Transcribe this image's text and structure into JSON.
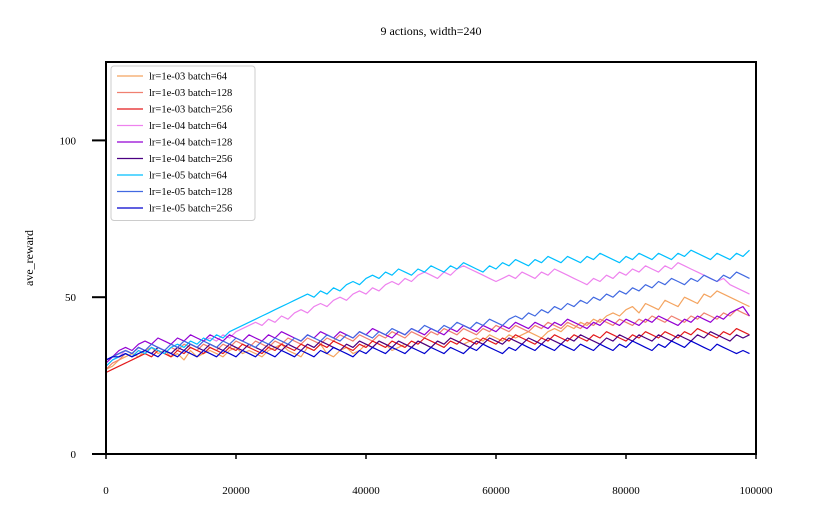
{
  "chart_data": {
    "type": "line",
    "title": "9 actions, width=240",
    "xlabel": "",
    "ylabel": "ave_reward",
    "xlim": [
      0,
      100000
    ],
    "ylim": [
      0,
      125
    ],
    "xticks": [
      0,
      20000,
      40000,
      60000,
      80000,
      100000
    ],
    "yticks": [
      0,
      50,
      100
    ],
    "grid": false,
    "legend_position": "top-left",
    "x_start": 0,
    "x_step": 1000,
    "series": [
      {
        "name": "lr=1e-03 batch=64",
        "color": "#f4a460",
        "values": [
          27,
          28,
          30,
          31,
          32,
          31,
          33,
          34,
          32,
          33,
          31,
          32,
          30,
          33,
          31,
          32,
          33,
          32,
          31,
          33,
          34,
          32,
          33,
          32,
          31,
          33,
          34,
          35,
          33,
          32,
          31,
          34,
          33,
          35,
          32,
          31,
          33,
          34,
          32,
          33,
          35,
          34,
          36,
          35,
          33,
          34,
          35,
          34,
          36,
          35,
          34,
          36,
          35,
          37,
          36,
          35,
          36,
          37,
          36,
          38,
          37,
          36,
          38,
          37,
          38,
          39,
          38,
          37,
          39,
          40,
          39,
          41,
          40,
          42,
          41,
          43,
          42,
          44,
          45,
          44,
          46,
          47,
          45,
          48,
          47,
          46,
          49,
          48,
          47,
          50,
          49,
          48,
          51,
          50,
          52,
          51,
          50,
          49,
          48,
          47
        ]
      },
      {
        "name": "lr=1e-03 batch=128",
        "color": "#f08070",
        "values": [
          27,
          29,
          30,
          32,
          31,
          33,
          32,
          34,
          33,
          32,
          34,
          33,
          35,
          34,
          33,
          35,
          34,
          33,
          35,
          34,
          36,
          35,
          34,
          36,
          35,
          34,
          36,
          35,
          37,
          36,
          35,
          37,
          36,
          35,
          37,
          36,
          38,
          37,
          36,
          38,
          37,
          36,
          38,
          37,
          39,
          38,
          37,
          39,
          38,
          37,
          39,
          38,
          40,
          39,
          38,
          40,
          39,
          38,
          40,
          39,
          41,
          40,
          39,
          41,
          40,
          39,
          41,
          40,
          42,
          41,
          40,
          42,
          41,
          40,
          42,
          41,
          43,
          42,
          41,
          43,
          42,
          41,
          43,
          42,
          44,
          43,
          42,
          44,
          43,
          42,
          44,
          43,
          45,
          44,
          43,
          45,
          44,
          46,
          45,
          44
        ]
      },
      {
        "name": "lr=1e-03 batch=256",
        "color": "#e31a1c",
        "values": [
          26,
          27,
          28,
          29,
          30,
          31,
          32,
          31,
          33,
          32,
          31,
          33,
          32,
          34,
          33,
          32,
          34,
          33,
          32,
          34,
          33,
          35,
          34,
          33,
          32,
          34,
          33,
          35,
          34,
          33,
          35,
          34,
          33,
          35,
          34,
          36,
          35,
          34,
          33,
          35,
          34,
          36,
          35,
          34,
          36,
          35,
          34,
          36,
          35,
          37,
          36,
          35,
          34,
          36,
          35,
          37,
          36,
          35,
          37,
          36,
          35,
          37,
          36,
          38,
          37,
          36,
          35,
          37,
          36,
          38,
          37,
          36,
          38,
          37,
          36,
          38,
          37,
          39,
          38,
          37,
          36,
          38,
          37,
          39,
          38,
          37,
          39,
          38,
          37,
          39,
          38,
          40,
          39,
          38,
          37,
          39,
          38,
          40,
          39,
          38
        ]
      },
      {
        "name": "lr=1e-04 batch=64",
        "color": "#ee82ee",
        "values": [
          28,
          30,
          31,
          33,
          32,
          34,
          33,
          35,
          34,
          33,
          35,
          34,
          36,
          35,
          34,
          36,
          37,
          36,
          38,
          37,
          39,
          40,
          41,
          42,
          41,
          43,
          42,
          44,
          43,
          45,
          46,
          45,
          47,
          48,
          47,
          49,
          50,
          49,
          51,
          52,
          51,
          53,
          52,
          54,
          55,
          54,
          56,
          55,
          57,
          58,
          57,
          56,
          58,
          57,
          59,
          60,
          59,
          58,
          57,
          56,
          55,
          56,
          57,
          56,
          58,
          57,
          56,
          58,
          57,
          59,
          58,
          57,
          56,
          55,
          54,
          56,
          55,
          57,
          56,
          58,
          57,
          59,
          58,
          60,
          59,
          58,
          60,
          59,
          61,
          60,
          59,
          58,
          57,
          56,
          55,
          56,
          54,
          53,
          52,
          51
        ]
      },
      {
        "name": "lr=1e-04 batch=128",
        "color": "#9400d3",
        "values": [
          29,
          31,
          33,
          34,
          33,
          35,
          36,
          35,
          37,
          36,
          35,
          37,
          36,
          38,
          37,
          36,
          38,
          37,
          36,
          38,
          37,
          36,
          38,
          37,
          36,
          38,
          37,
          39,
          38,
          37,
          36,
          38,
          37,
          39,
          38,
          37,
          39,
          38,
          37,
          39,
          38,
          40,
          39,
          38,
          37,
          39,
          38,
          40,
          39,
          38,
          40,
          39,
          38,
          40,
          39,
          41,
          40,
          39,
          41,
          40,
          39,
          41,
          40,
          42,
          41,
          40,
          42,
          41,
          40,
          42,
          41,
          43,
          42,
          41,
          40,
          42,
          41,
          43,
          42,
          41,
          43,
          42,
          41,
          43,
          42,
          44,
          43,
          42,
          41,
          43,
          42,
          44,
          43,
          42,
          44,
          43,
          45,
          46,
          47,
          44
        ]
      },
      {
        "name": "lr=1e-04 batch=256",
        "color": "#4b0082",
        "values": [
          30,
          31,
          32,
          33,
          32,
          34,
          33,
          32,
          34,
          33,
          32,
          34,
          33,
          35,
          34,
          33,
          35,
          34,
          33,
          35,
          34,
          33,
          35,
          34,
          33,
          35,
          34,
          33,
          35,
          34,
          33,
          35,
          34,
          36,
          35,
          34,
          33,
          35,
          34,
          36,
          35,
          34,
          36,
          35,
          34,
          36,
          35,
          34,
          36,
          35,
          34,
          36,
          35,
          37,
          36,
          35,
          34,
          36,
          35,
          37,
          36,
          35,
          37,
          36,
          35,
          37,
          36,
          35,
          37,
          36,
          35,
          37,
          36,
          38,
          37,
          36,
          35,
          37,
          36,
          38,
          37,
          36,
          38,
          37,
          36,
          38,
          37,
          36,
          38,
          37,
          36,
          38,
          37,
          39,
          38,
          37,
          36,
          38,
          37,
          38
        ]
      },
      {
        "name": "lr=1e-05 batch=64",
        "color": "#00bfff",
        "values": [
          28,
          30,
          31,
          32,
          31,
          33,
          32,
          34,
          33,
          32,
          34,
          35,
          34,
          36,
          35,
          37,
          36,
          38,
          37,
          39,
          40,
          41,
          42,
          43,
          44,
          45,
          46,
          47,
          48,
          49,
          50,
          51,
          50,
          52,
          51,
          53,
          52,
          54,
          55,
          54,
          56,
          57,
          56,
          58,
          57,
          59,
          58,
          57,
          59,
          58,
          60,
          59,
          58,
          60,
          59,
          61,
          60,
          59,
          58,
          60,
          59,
          61,
          60,
          62,
          61,
          60,
          62,
          61,
          63,
          62,
          61,
          63,
          62,
          61,
          63,
          62,
          64,
          63,
          62,
          61,
          63,
          62,
          64,
          63,
          62,
          64,
          63,
          62,
          64,
          63,
          65,
          64,
          63,
          62,
          64,
          63,
          62,
          64,
          63,
          65
        ]
      },
      {
        "name": "lr=1e-05 batch=128",
        "color": "#4169e1",
        "values": [
          30,
          31,
          32,
          33,
          32,
          34,
          33,
          35,
          34,
          33,
          35,
          34,
          36,
          35,
          34,
          36,
          35,
          34,
          36,
          35,
          37,
          36,
          35,
          34,
          36,
          35,
          37,
          36,
          35,
          37,
          36,
          38,
          37,
          36,
          38,
          37,
          36,
          38,
          37,
          39,
          38,
          37,
          39,
          38,
          40,
          39,
          38,
          40,
          39,
          41,
          40,
          39,
          41,
          40,
          42,
          41,
          40,
          42,
          41,
          43,
          42,
          41,
          43,
          44,
          43,
          45,
          44,
          46,
          45,
          47,
          46,
          48,
          47,
          49,
          48,
          50,
          49,
          51,
          50,
          52,
          51,
          53,
          52,
          54,
          53,
          55,
          54,
          56,
          55,
          54,
          56,
          55,
          57,
          56,
          55,
          57,
          56,
          58,
          57,
          56
        ]
      },
      {
        "name": "lr=1e-05 batch=256",
        "color": "#0000cd",
        "values": [
          30,
          31,
          31,
          32,
          31,
          32,
          33,
          32,
          31,
          33,
          32,
          31,
          33,
          32,
          31,
          33,
          32,
          31,
          33,
          32,
          31,
          33,
          32,
          31,
          33,
          32,
          31,
          33,
          32,
          31,
          33,
          32,
          31,
          33,
          32,
          34,
          33,
          32,
          31,
          33,
          32,
          34,
          33,
          32,
          34,
          33,
          32,
          34,
          33,
          32,
          34,
          33,
          32,
          34,
          33,
          32,
          34,
          33,
          35,
          34,
          33,
          32,
          34,
          33,
          35,
          34,
          33,
          35,
          34,
          33,
          35,
          34,
          33,
          35,
          34,
          33,
          35,
          34,
          33,
          35,
          34,
          36,
          35,
          34,
          33,
          35,
          34,
          36,
          35,
          34,
          36,
          35,
          34,
          33,
          35,
          34,
          33,
          32,
          33,
          32
        ]
      }
    ]
  }
}
